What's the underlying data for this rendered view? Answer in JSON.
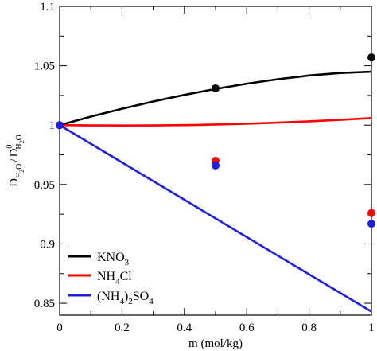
{
  "chart_data": {
    "type": "line",
    "xlabel": "m (mol/kg)",
    "ylabel": {
      "main": "D",
      "main_sub": "H",
      "main_sub2": "2",
      "main_sub3": "O",
      "slash": "/",
      "ref": "D",
      "ref_sup": "0",
      "ref_sub": "H",
      "ref_sub2": "2",
      "ref_sub3": "O"
    },
    "xlim": [
      0,
      1
    ],
    "ylim": [
      0.84,
      1.1
    ],
    "xticks": [
      0,
      0.2,
      0.4,
      0.6,
      0.8,
      1
    ],
    "xtick_labels": [
      "0",
      "0.2",
      "0.4",
      "0.6",
      "0.8",
      "1"
    ],
    "yticks": [
      0.85,
      0.9,
      0.95,
      1,
      1.05,
      1.1
    ],
    "ytick_labels": [
      "0.85",
      "0.9",
      "0.95",
      "1",
      "1.05",
      "1.1"
    ],
    "grid": false,
    "legend_position": "bottom-left",
    "series": [
      {
        "name": "KNO3",
        "legend": {
          "base": "KNO",
          "sub": "3"
        },
        "color": "#000000",
        "line": {
          "x": [
            0,
            0.1,
            0.2,
            0.3,
            0.4,
            0.5,
            0.6,
            0.7,
            0.8,
            0.9,
            1.0
          ],
          "y": [
            1.0,
            1.0072,
            1.0138,
            1.0199,
            1.0255,
            1.0305,
            1.0349,
            1.0387,
            1.0418,
            1.0439,
            1.045
          ]
        },
        "points": {
          "x": [
            0,
            0.5,
            1.0
          ],
          "y": [
            1.0,
            1.031,
            1.057
          ]
        }
      },
      {
        "name": "NH4Cl",
        "legend": {
          "pre": "NH",
          "sub": "4",
          "post": "Cl"
        },
        "color": "#ff0000",
        "line": {
          "x": [
            0,
            0.1,
            0.2,
            0.3,
            0.4,
            0.5,
            0.6,
            0.7,
            0.8,
            0.9,
            1.0
          ],
          "y": [
            1.0,
            0.9998,
            0.9997,
            0.9998,
            1.0,
            1.0005,
            1.0012,
            1.0021,
            1.0032,
            1.0045,
            1.006
          ]
        },
        "points": {
          "x": [
            0.5,
            1.0
          ],
          "y": [
            0.97,
            0.926
          ]
        }
      },
      {
        "name": "(NH4)2SO4",
        "legend": {
          "pre": "(NH",
          "sub1": "4",
          "mid": ")",
          "sub2": "2",
          "post": "SO",
          "sub3": "4"
        },
        "color": "#1f1fe0",
        "line": {
          "x": [
            0,
            1.0
          ],
          "y": [
            1.0,
            0.843
          ]
        },
        "points": {
          "x": [
            0,
            0.5,
            1.0
          ],
          "y": [
            1.0,
            0.966,
            0.917
          ]
        }
      }
    ]
  }
}
